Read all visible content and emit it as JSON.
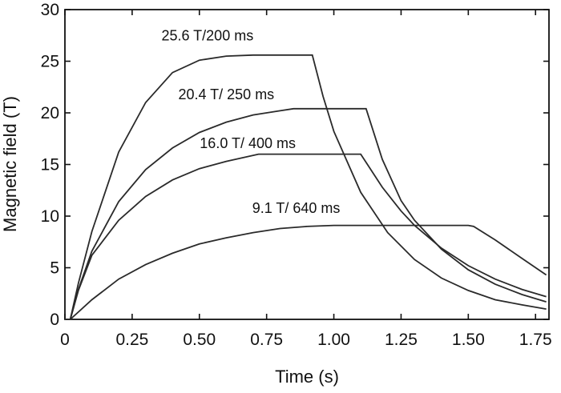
{
  "chart_data": {
    "type": "line",
    "title": "",
    "xlabel": "Time (s)",
    "ylabel": "Magnetic field (T)",
    "xlim": [
      0,
      1.8
    ],
    "ylim": [
      0,
      30
    ],
    "xticks": [
      "0",
      "0.25",
      "0.50",
      "0.75",
      "1.00",
      "1.25",
      "1.50",
      "1.75"
    ],
    "yticks": [
      "0",
      "5",
      "10",
      "15",
      "20",
      "25",
      "30"
    ],
    "grid": false,
    "legend": "none",
    "series": [
      {
        "x": [
          0,
          0.02,
          0.05,
          0.1,
          0.2,
          0.3,
          0.4,
          0.5,
          0.6,
          0.7,
          0.8,
          0.92,
          0.96,
          1.0,
          1.1,
          1.2,
          1.3,
          1.4,
          1.5,
          1.6,
          1.7,
          1.79
        ],
        "values": [
          0,
          0,
          3.5,
          8.5,
          16.2,
          21.0,
          23.9,
          25.1,
          25.5,
          25.6,
          25.6,
          25.6,
          21.6,
          18.2,
          12.3,
          8.4,
          5.8,
          4.0,
          2.8,
          1.9,
          1.4,
          1.0
        ]
      },
      {
        "x": [
          0,
          0.02,
          0.05,
          0.1,
          0.2,
          0.3,
          0.4,
          0.5,
          0.6,
          0.7,
          0.8,
          0.85,
          1.0,
          1.12,
          1.18,
          1.25,
          1.3,
          1.4,
          1.5,
          1.6,
          1.7,
          1.79
        ],
        "values": [
          0,
          0,
          2.9,
          6.6,
          11.4,
          14.5,
          16.6,
          18.1,
          19.1,
          19.8,
          20.2,
          20.4,
          20.4,
          20.4,
          15.5,
          11.5,
          9.6,
          6.8,
          4.8,
          3.4,
          2.4,
          1.7
        ]
      },
      {
        "x": [
          0,
          0.02,
          0.05,
          0.1,
          0.2,
          0.3,
          0.4,
          0.5,
          0.6,
          0.72,
          0.9,
          1.1,
          1.12,
          1.18,
          1.25,
          1.3,
          1.4,
          1.5,
          1.6,
          1.7,
          1.79
        ],
        "values": [
          0,
          0,
          2.8,
          6.2,
          9.6,
          11.9,
          13.5,
          14.6,
          15.3,
          16.0,
          16.0,
          16.0,
          15.2,
          12.8,
          10.5,
          9.1,
          6.9,
          5.2,
          3.9,
          2.9,
          2.2
        ]
      },
      {
        "x": [
          0,
          0.02,
          0.1,
          0.2,
          0.3,
          0.4,
          0.5,
          0.6,
          0.7,
          0.8,
          0.9,
          1.0,
          1.5,
          1.52,
          1.6,
          1.7,
          1.79
        ],
        "values": [
          0,
          0,
          1.9,
          3.9,
          5.3,
          6.4,
          7.3,
          7.9,
          8.4,
          8.8,
          9.0,
          9.1,
          9.1,
          9.0,
          7.7,
          5.9,
          4.3
        ]
      }
    ],
    "annotations": [
      {
        "text": "25.6 T/200 ms",
        "x": 0.53,
        "y": 27.0
      },
      {
        "text": "20.4 T/ 250 ms",
        "x": 0.6,
        "y": 21.3
      },
      {
        "text": "16.0 T/ 400 ms",
        "x": 0.68,
        "y": 16.6
      },
      {
        "text": "9.1 T/ 640 ms",
        "x": 0.86,
        "y": 10.3
      }
    ]
  }
}
